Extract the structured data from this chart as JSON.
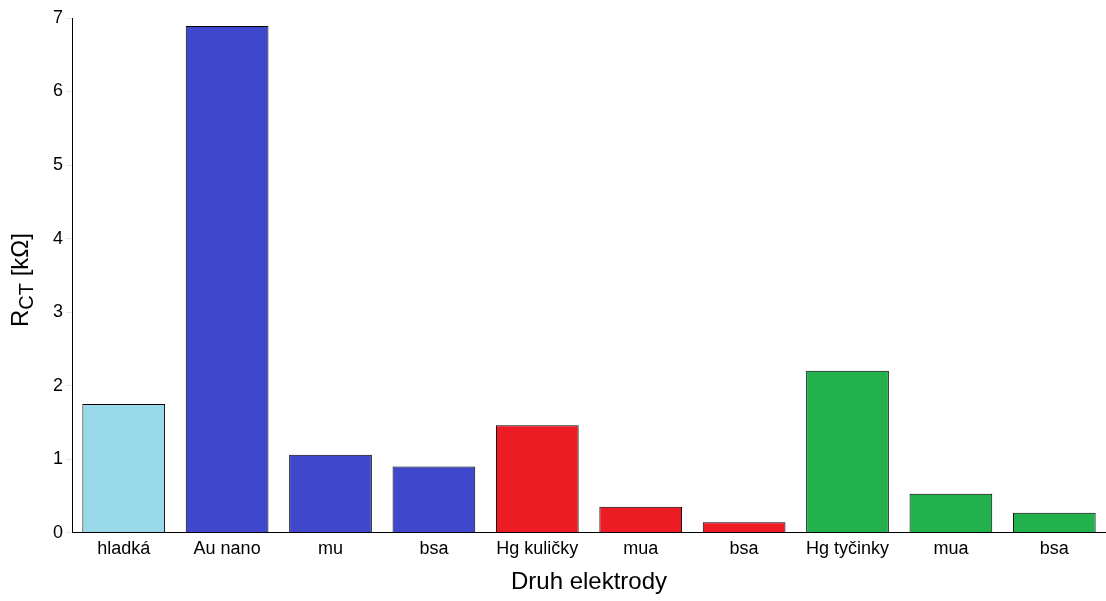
{
  "chart_data": {
    "type": "bar",
    "xlabel": "Druh elektrody",
    "ylabel": "R$_{CT}$ [kΩ]",
    "categories": [
      "hladká",
      "Au nano",
      "mu",
      "bsa",
      "Hg kuličky",
      "mua",
      "bsa",
      "Hg tyčinky",
      "mua",
      "bsa"
    ],
    "values": [
      1.75,
      6.89,
      1.06,
      0.9,
      1.46,
      0.35,
      0.14,
      2.2,
      0.53,
      0.27
    ],
    "colors": [
      "#99d9ea",
      "#3f48cc",
      "#3f48cc",
      "#3f48cc",
      "#ed1c24",
      "#ed1c24",
      "#ed1c24",
      "#22b14c",
      "#22b14c",
      "#22b14c"
    ],
    "ylim": [
      0,
      7
    ],
    "yticks": [
      0,
      1,
      2,
      3,
      4,
      5,
      6,
      7
    ],
    "grid": false,
    "legend": false
  }
}
